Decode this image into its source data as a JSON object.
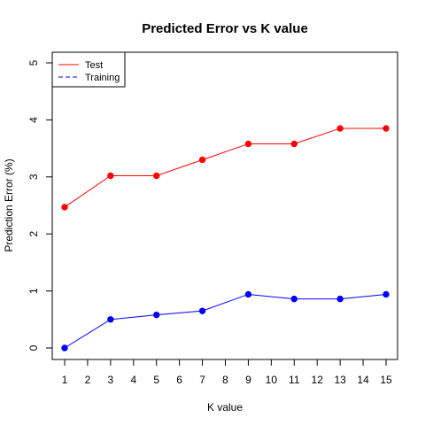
{
  "chart_data": {
    "type": "line",
    "title": "Predicted Error vs K value",
    "xlabel": "K value",
    "ylabel": "Prediction Error (%)",
    "x": [
      1,
      3,
      5,
      7,
      9,
      11,
      13,
      15
    ],
    "x_ticks": [
      "1",
      "2",
      "3",
      "4",
      "5",
      "6",
      "7",
      "8",
      "9",
      "10",
      "11",
      "12",
      "13",
      "14",
      "15"
    ],
    "y_ticks": [
      "0",
      "1",
      "2",
      "3",
      "4",
      "5"
    ],
    "xlim": [
      1,
      15
    ],
    "ylim": [
      0,
      5
    ],
    "grid": false,
    "legend_position": "top-left",
    "series": [
      {
        "name": "Test",
        "color": "#ff0000",
        "line_style": "solid",
        "marker": "filled-circle",
        "values": [
          2.47,
          3.02,
          3.02,
          3.3,
          3.58,
          3.58,
          3.85,
          3.85
        ]
      },
      {
        "name": "Training",
        "color": "#0000ff",
        "line_style": "dashed",
        "marker": "filled-circle",
        "values": [
          0.0,
          0.5,
          0.58,
          0.65,
          0.94,
          0.86,
          0.86,
          0.94
        ]
      }
    ]
  }
}
